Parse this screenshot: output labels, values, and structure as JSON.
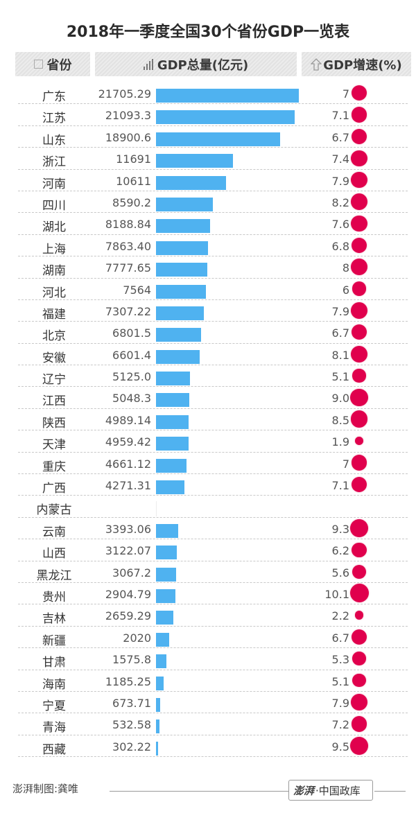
{
  "title": "2018年一季度全国30个省份GDP一览表",
  "header": {
    "province_label": "省份",
    "gdp_label": "GDP总量(亿元)",
    "rate_label": "GDP增速(%)",
    "icons": {
      "province": "square-icon",
      "gdp": "bar-chart-icon",
      "rate": "up-arrow-icon"
    }
  },
  "colors": {
    "bar": "#4fb2f0",
    "dot": "#e0004d",
    "header_bg": "#e6e6e6"
  },
  "rows": [
    {
      "province": "广东",
      "gdp": "21705.29",
      "rate": "7"
    },
    {
      "province": "江苏",
      "gdp": "21093.3",
      "rate": "7.1"
    },
    {
      "province": "山东",
      "gdp": "18900.6",
      "rate": "6.7"
    },
    {
      "province": "浙江",
      "gdp": "11691",
      "rate": "7.4"
    },
    {
      "province": "河南",
      "gdp": "10611",
      "rate": "7.9"
    },
    {
      "province": "四川",
      "gdp": "8590.2",
      "rate": "8.2"
    },
    {
      "province": "湖北",
      "gdp": "8188.84",
      "rate": "7.6"
    },
    {
      "province": "上海",
      "gdp": "7863.40",
      "rate": "6.8"
    },
    {
      "province": "湖南",
      "gdp": "7777.65",
      "rate": "8"
    },
    {
      "province": "河北",
      "gdp": "7564",
      "rate": "6"
    },
    {
      "province": "福建",
      "gdp": "7307.22",
      "rate": "7.9"
    },
    {
      "province": "北京",
      "gdp": "6801.5",
      "rate": "6.7"
    },
    {
      "province": "安徽",
      "gdp": "6601.4",
      "rate": "8.1"
    },
    {
      "province": "辽宁",
      "gdp": "5125.0",
      "rate": "5.1"
    },
    {
      "province": "江西",
      "gdp": "5048.3",
      "rate": "9.0"
    },
    {
      "province": "陕西",
      "gdp": "4989.14",
      "rate": "8.5"
    },
    {
      "province": "天津",
      "gdp": "4959.42",
      "rate": "1.9"
    },
    {
      "province": "重庆",
      "gdp": "4661.12",
      "rate": "7"
    },
    {
      "province": "广西",
      "gdp": "4271.31",
      "rate": "7.1"
    },
    {
      "province": "内蒙古",
      "gdp": "",
      "rate": ""
    },
    {
      "province": "云南",
      "gdp": "3393.06",
      "rate": "9.3"
    },
    {
      "province": "山西",
      "gdp": "3122.07",
      "rate": "6.2"
    },
    {
      "province": "黑龙江",
      "gdp": "3067.2",
      "rate": "5.6"
    },
    {
      "province": "贵州",
      "gdp": "2904.79",
      "rate": "10.1"
    },
    {
      "province": "吉林",
      "gdp": "2659.29",
      "rate": "2.2"
    },
    {
      "province": "新疆",
      "gdp": "2020",
      "rate": "6.7"
    },
    {
      "province": "甘肃",
      "gdp": "1575.8",
      "rate": "5.3"
    },
    {
      "province": "海南",
      "gdp": "1185.25",
      "rate": "5.1"
    },
    {
      "province": "宁夏",
      "gdp": "673.71",
      "rate": "7.9"
    },
    {
      "province": "青海",
      "gdp": "532.58",
      "rate": "7.2"
    },
    {
      "province": "西藏",
      "gdp": "302.22",
      "rate": "9.5"
    }
  ],
  "footer": {
    "credit": "澎湃制图:龚唯",
    "logo_brand": "澎湃",
    "logo_text": "·中国政库"
  },
  "chart_data": {
    "type": "bar",
    "title": "2018年一季度全国30个省份GDP一览表",
    "xlabel": "",
    "ylabel": "GDP总量(亿元)",
    "categories": [
      "广东",
      "江苏",
      "山东",
      "浙江",
      "河南",
      "四川",
      "湖北",
      "上海",
      "湖南",
      "河北",
      "福建",
      "北京",
      "安徽",
      "辽宁",
      "江西",
      "陕西",
      "天津",
      "重庆",
      "广西",
      "内蒙古",
      "云南",
      "山西",
      "黑龙江",
      "贵州",
      "吉林",
      "新疆",
      "甘肃",
      "海南",
      "宁夏",
      "青海",
      "西藏"
    ],
    "series": [
      {
        "name": "GDP总量(亿元)",
        "type": "bar",
        "values": [
          21705.29,
          21093.3,
          18900.6,
          11691,
          10611,
          8590.2,
          8188.84,
          7863.4,
          7777.65,
          7564,
          7307.22,
          6801.5,
          6601.4,
          5125.0,
          5048.3,
          4989.14,
          4959.42,
          4661.12,
          4271.31,
          null,
          3393.06,
          3122.07,
          3067.2,
          2904.79,
          2659.29,
          2020,
          1575.8,
          1185.25,
          673.71,
          532.58,
          302.22
        ]
      },
      {
        "name": "GDP增速(%)",
        "type": "bubble",
        "values": [
          7,
          7.1,
          6.7,
          7.4,
          7.9,
          8.2,
          7.6,
          6.8,
          8,
          6,
          7.9,
          6.7,
          8.1,
          5.1,
          9.0,
          8.5,
          1.9,
          7,
          7.1,
          null,
          9.3,
          6.2,
          5.6,
          10.1,
          2.2,
          6.7,
          5.3,
          5.1,
          7.9,
          7.2,
          9.5
        ]
      }
    ],
    "orientation": "horizontal",
    "grid": false,
    "legend": "column headers",
    "source": "澎湃制图:龚唯"
  }
}
